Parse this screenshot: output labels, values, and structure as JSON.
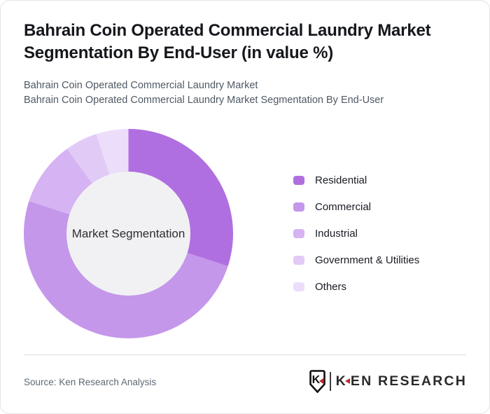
{
  "header": {
    "title": "Bahrain Coin Operated Commercial Laundry Market Segmentation By End-User (in value %)",
    "subtitle_line1": "Bahrain Coin Operated Commercial Laundry Market",
    "subtitle_line2": "Bahrain Coin Operated Commercial Laundry Market Segmentation By End-User"
  },
  "chart_data": {
    "type": "pie",
    "variant": "donut",
    "title": "Bahrain Coin Operated Commercial Laundry Market Segmentation By End-User (in value %)",
    "center_label": "Market Segmentation",
    "categories": [
      "Residential",
      "Commercial",
      "Industrial",
      "Government & Utilities",
      "Others"
    ],
    "values": [
      30,
      50,
      10,
      5,
      5
    ],
    "unit": "percent of market value",
    "colors": [
      "#b06fe0",
      "#c497ea",
      "#d6b3f2",
      "#e2caf7",
      "#ecdefb"
    ],
    "start_angle_deg": 0,
    "direction": "clockwise",
    "legend_position": "right",
    "hole_color": "#f1f1f3"
  },
  "footer": {
    "source": "Source: Ken Research Analysis",
    "logo": {
      "emblem_letter": "K",
      "wordmark_k": "K",
      "wordmark_rest": "EN RESEARCH"
    }
  },
  "colors": {
    "brand_red": "#c1272d",
    "title_text": "#15171c",
    "subtitle_text": "#4e5964",
    "divider": "#dcdcdc",
    "card_border": "#e4e4e4"
  }
}
